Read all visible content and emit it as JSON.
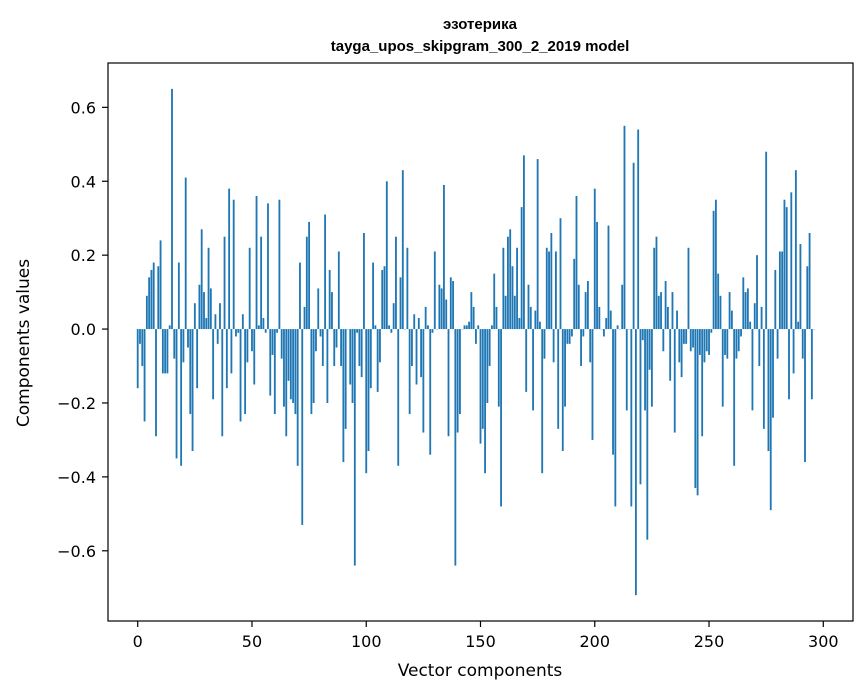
{
  "chart_data": {
    "type": "bar",
    "title": "эзотерика",
    "subtitle": "tayga_upos_skipgram_300_2_2019 model",
    "xlabel": "Vector components",
    "ylabel": "Components values",
    "xlim": [
      -13,
      313
    ],
    "ylim": [
      -0.79,
      0.72
    ],
    "xticks": [
      0,
      50,
      100,
      150,
      200,
      250,
      300
    ],
    "xtick_labels": [
      "0",
      "50",
      "100",
      "150",
      "200",
      "250",
      "300"
    ],
    "yticks": [
      -0.6,
      -0.4,
      -0.2,
      0.0,
      0.2,
      0.4,
      0.6
    ],
    "ytick_labels": [
      "−0.6",
      "−0.4",
      "−0.2",
      "0.0",
      "0.2",
      "0.4",
      "0.6"
    ],
    "bar_color": "#1f77b4",
    "values": [
      -0.16,
      -0.04,
      -0.1,
      -0.25,
      0.09,
      0.14,
      0.16,
      0.18,
      -0.29,
      0.17,
      0.24,
      -0.12,
      -0.12,
      -0.12,
      0.01,
      0.65,
      -0.08,
      -0.35,
      0.18,
      -0.37,
      -0.09,
      0.41,
      -0.05,
      -0.23,
      -0.33,
      0.07,
      -0.16,
      0.12,
      0.27,
      0.1,
      0.03,
      0.22,
      0.11,
      -0.19,
      0.04,
      -0.04,
      0.07,
      -0.29,
      0.25,
      -0.16,
      0.38,
      -0.12,
      0.35,
      -0.02,
      -0.01,
      -0.25,
      0.04,
      -0.23,
      -0.09,
      0.22,
      -0.06,
      -0.15,
      0.36,
      0.01,
      0.25,
      0.03,
      -0.01,
      0.34,
      -0.18,
      -0.07,
      -0.23,
      -0.01,
      0.35,
      -0.08,
      -0.21,
      -0.29,
      -0.14,
      -0.19,
      -0.2,
      -0.23,
      -0.37,
      0.18,
      -0.53,
      0.06,
      0.25,
      0.29,
      -0.23,
      -0.2,
      -0.06,
      0.11,
      -0.02,
      -0.1,
      0.31,
      -0.2,
      0.16,
      0.1,
      -0.1,
      -0.05,
      0.21,
      -0.1,
      -0.36,
      -0.27,
      0.0,
      -0.15,
      -0.2,
      -0.64,
      -0.01,
      -0.1,
      -0.13,
      0.26,
      -0.39,
      -0.33,
      -0.16,
      0.18,
      0.01,
      -0.17,
      -0.09,
      0.16,
      0.17,
      0.4,
      0.01,
      -0.01,
      0.07,
      0.25,
      -0.37,
      0.14,
      0.43,
      0.0,
      0.22,
      -0.23,
      -0.1,
      0.04,
      -0.15,
      0.03,
      -0.13,
      -0.28,
      0.06,
      0.01,
      -0.34,
      -0.01,
      0.21,
      0.0,
      0.12,
      0.11,
      0.39,
      0.08,
      -0.29,
      0.14,
      0.13,
      -0.64,
      -0.28,
      -0.23,
      0.0,
      0.01,
      0.01,
      0.02,
      0.1,
      0.06,
      -0.04,
      0.01,
      -0.31,
      -0.27,
      -0.39,
      -0.2,
      -0.1,
      0.01,
      0.15,
      0.06,
      -0.21,
      -0.48,
      0.22,
      0.09,
      0.25,
      0.27,
      0.17,
      0.09,
      0.22,
      0.03,
      0.33,
      0.47,
      -0.17,
      0.12,
      0.06,
      -0.22,
      0.05,
      0.46,
      0.02,
      -0.39,
      -0.08,
      0.22,
      0.21,
      0.26,
      -0.09,
      0.21,
      -0.27,
      0.3,
      -0.33,
      -0.21,
      -0.04,
      -0.04,
      -0.02,
      0.19,
      0.36,
      0.12,
      -0.1,
      -0.02,
      0.1,
      0.13,
      -0.09,
      -0.3,
      0.38,
      0.29,
      0.06,
      0.0,
      -0.02,
      0.03,
      0.28,
      0.05,
      -0.34,
      -0.48,
      0.01,
      0.0,
      0.12,
      0.55,
      -0.22,
      0.0,
      -0.48,
      0.45,
      -0.72,
      0.54,
      -0.42,
      -0.03,
      -0.22,
      -0.57,
      -0.11,
      -0.21,
      0.22,
      0.25,
      0.09,
      0.1,
      -0.06,
      0.13,
      0.06,
      -0.14,
      0.1,
      -0.28,
      0.05,
      -0.09,
      -0.13,
      -0.04,
      -0.04,
      0.22,
      -0.06,
      -0.05,
      -0.43,
      -0.45,
      -0.07,
      -0.29,
      -0.09,
      -0.06,
      -0.07,
      -0.01,
      0.32,
      0.35,
      0.15,
      0.09,
      -0.21,
      -0.07,
      -0.08,
      0.1,
      0.05,
      -0.37,
      -0.08,
      -0.06,
      -0.02,
      0.14,
      0.1,
      0.11,
      0.02,
      -0.22,
      0.07,
      0.2,
      -0.1,
      0.06,
      -0.27,
      0.48,
      -0.33,
      -0.49,
      -0.24,
      0.16,
      -0.08,
      0.21,
      0.21,
      0.35,
      0.33,
      -0.19,
      0.37,
      -0.12,
      0.43,
      0.02,
      0.23,
      -0.08,
      -0.36,
      0.17,
      0.26,
      -0.19,
      0.0
    ]
  }
}
